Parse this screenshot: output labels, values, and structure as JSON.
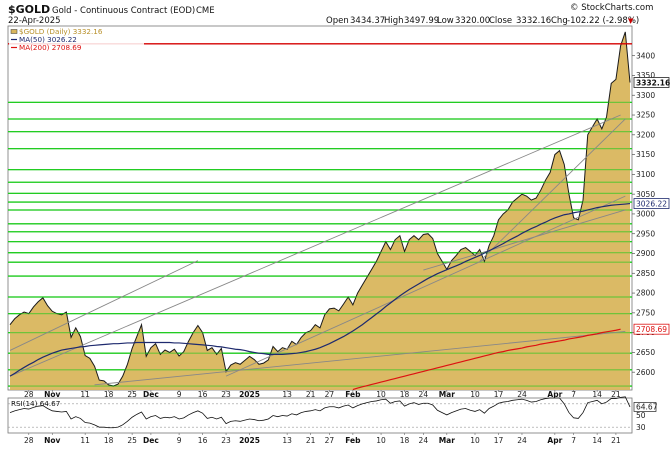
{
  "header": {
    "symbol": "$GOLD",
    "description": "Gold - Continuous Contract (EOD)",
    "exchange": "CME",
    "date": "22-Apr-2025",
    "watermark": "© StockCharts.com",
    "open_label": "Open",
    "open": "3434.37",
    "high_label": "High",
    "high": "3497.99",
    "low_label": "Low",
    "low": "3320.00",
    "close_label": "Close",
    "close": "3332.16",
    "chg_label": "Chg",
    "chg": "-102.22 (-2.98%)",
    "down_arrow": "▼"
  },
  "legend": {
    "price": "$GOLD (Daily) 3332.16",
    "ma50": "MA(50) 3026.22",
    "ma200": "MA(200) 2708.69"
  },
  "colors": {
    "price_fill": "#D9B65D",
    "price_line": "#1a1a1a",
    "ma50": "#1e2a6e",
    "ma200": "#dd1111",
    "hline": "#22cc22",
    "resistance": "#d40000",
    "trend": "#888888"
  },
  "rsi_label": "RSI(14) 64.67",
  "chart_data": {
    "type": "area",
    "title": "$GOLD Gold - Continuous Contract (EOD)",
    "ylim": [
      2555,
      3475
    ],
    "y_ticks": [
      2600,
      2650,
      2700,
      2750,
      2800,
      2850,
      2900,
      2950,
      3000,
      3050,
      3100,
      3150,
      3200,
      3250,
      3300,
      3350,
      3400
    ],
    "x_ticks": [
      {
        "label": "28",
        "i": 4,
        "bold": false
      },
      {
        "label": "Nov",
        "i": 9,
        "bold": true
      },
      {
        "label": "11",
        "i": 16,
        "bold": false
      },
      {
        "label": "18",
        "i": 21,
        "bold": false
      },
      {
        "label": "25",
        "i": 26,
        "bold": false
      },
      {
        "label": "Dec",
        "i": 30,
        "bold": true
      },
      {
        "label": "9",
        "i": 36,
        "bold": false
      },
      {
        "label": "16",
        "i": 41,
        "bold": false
      },
      {
        "label": "23",
        "i": 46,
        "bold": false
      },
      {
        "label": "2025",
        "i": 51,
        "bold": true
      },
      {
        "label": "13",
        "i": 59,
        "bold": false
      },
      {
        "label": "21",
        "i": 64,
        "bold": false
      },
      {
        "label": "27",
        "i": 68,
        "bold": false
      },
      {
        "label": "Feb",
        "i": 73,
        "bold": true
      },
      {
        "label": "10",
        "i": 79,
        "bold": false
      },
      {
        "label": "18",
        "i": 84,
        "bold": false
      },
      {
        "label": "24",
        "i": 88,
        "bold": false
      },
      {
        "label": "Mar",
        "i": 93,
        "bold": true
      },
      {
        "label": "10",
        "i": 99,
        "bold": false
      },
      {
        "label": "17",
        "i": 104,
        "bold": false
      },
      {
        "label": "24",
        "i": 109,
        "bold": false
      },
      {
        "label": "Apr",
        "i": 116,
        "bold": true
      },
      {
        "label": "7",
        "i": 120,
        "bold": false
      },
      {
        "label": "14",
        "i": 125,
        "bold": false
      },
      {
        "label": "21",
        "i": 129,
        "bold": false
      }
    ],
    "series": [
      {
        "name": "$GOLD (Daily)",
        "values": [
          2720,
          2735,
          2745,
          2752,
          2748,
          2765,
          2778,
          2788,
          2768,
          2754,
          2748,
          2745,
          2752,
          2688,
          2712,
          2690,
          2642,
          2635,
          2615,
          2580,
          2578,
          2568,
          2565,
          2570,
          2590,
          2620,
          2660,
          2690,
          2720,
          2640,
          2662,
          2672,
          2645,
          2656,
          2650,
          2658,
          2641,
          2652,
          2678,
          2700,
          2718,
          2700,
          2655,
          2662,
          2645,
          2660,
          2601,
          2618,
          2624,
          2620,
          2630,
          2640,
          2632,
          2620,
          2623,
          2631,
          2665,
          2652,
          2662,
          2658,
          2678,
          2670,
          2688,
          2700,
          2705,
          2720,
          2712,
          2745,
          2760,
          2762,
          2755,
          2772,
          2790,
          2770,
          2800,
          2820,
          2840,
          2860,
          2880,
          2905,
          2930,
          2910,
          2935,
          2945,
          2905,
          2935,
          2945,
          2935,
          2948,
          2950,
          2938,
          2900,
          2880,
          2860,
          2882,
          2895,
          2910,
          2915,
          2905,
          2895,
          2910,
          2880,
          2920,
          2945,
          2985,
          3000,
          3010,
          3030,
          3040,
          3050,
          3045,
          3035,
          3040,
          3060,
          3085,
          3105,
          3150,
          3160,
          3125,
          3050,
          2990,
          2985,
          3035,
          3200,
          3220,
          3240,
          3215,
          3245,
          3330,
          3340,
          3425,
          3460,
          3332.16
        ]
      },
      {
        "name": "MA(50)",
        "values": [
          2590,
          2597,
          2605,
          2612,
          2619,
          2625,
          2632,
          2638,
          2643,
          2648,
          2652,
          2656,
          2658,
          2660,
          2662,
          2664,
          2665,
          2667,
          2668,
          2669,
          2670,
          2671,
          2672,
          2672,
          2673,
          2674,
          2674,
          2675,
          2675,
          2675,
          2675,
          2675,
          2675,
          2675,
          2675,
          2674,
          2674,
          2673,
          2672,
          2671,
          2670,
          2669,
          2668,
          2667,
          2665,
          2664,
          2662,
          2660,
          2658,
          2657,
          2655,
          2652,
          2650,
          2648,
          2647,
          2645,
          2645,
          2645,
          2645,
          2646,
          2647,
          2648,
          2650,
          2652,
          2655,
          2658,
          2662,
          2667,
          2672,
          2678,
          2684,
          2690,
          2697,
          2704,
          2712,
          2720,
          2729,
          2738,
          2747,
          2756,
          2766,
          2775,
          2784,
          2793,
          2801,
          2809,
          2816,
          2823,
          2830,
          2837,
          2843,
          2849,
          2854,
          2859,
          2864,
          2869,
          2874,
          2880,
          2885,
          2890,
          2895,
          2901,
          2907,
          2913,
          2919,
          2925,
          2932,
          2938,
          2944,
          2951,
          2957,
          2963,
          2968,
          2974,
          2979,
          2985,
          2990,
          2994,
          2998,
          3000,
          3003,
          3005,
          3007,
          3010,
          3013,
          3016,
          3018,
          3020,
          3022,
          3023,
          3024,
          3025,
          3026.22
        ]
      },
      {
        "name": "MA(200)",
        "values": [
          null,
          null,
          null,
          null,
          null,
          null,
          null,
          null,
          null,
          null,
          null,
          null,
          null,
          null,
          null,
          null,
          null,
          null,
          null,
          null,
          null,
          null,
          null,
          null,
          null,
          null,
          null,
          null,
          null,
          null,
          null,
          null,
          null,
          null,
          null,
          null,
          null,
          null,
          null,
          null,
          null,
          null,
          null,
          null,
          null,
          null,
          null,
          null,
          null,
          null,
          null,
          null,
          null,
          null,
          null,
          null,
          null,
          null,
          null,
          null,
          null,
          null,
          null,
          null,
          null,
          null,
          null,
          null,
          null,
          null,
          null,
          null,
          null,
          2556,
          2560,
          2563,
          2566,
          2569,
          2572,
          2575,
          2578,
          2581,
          2584,
          2587,
          2590,
          2593,
          2596,
          2599,
          2602,
          2605,
          2608,
          2611,
          2614,
          2617,
          2620,
          2623,
          2626,
          2629,
          2632,
          2635,
          2638,
          2641,
          2644,
          2647,
          2650,
          2652,
          2655,
          2657,
          2659,
          2661,
          2664,
          2666,
          2668,
          2671,
          2673,
          2675,
          2677,
          2679,
          2681,
          2684,
          2686,
          2688,
          2690,
          2693,
          2695,
          2697,
          2700,
          2702,
          2704,
          2706,
          2708.69
        ]
      }
    ],
    "horizontal_levels": [
      2565,
      2606,
      2648,
      2700,
      2748,
      2790,
      2843,
      2878,
      2902,
      2930,
      2955,
      2975,
      3010,
      3030,
      3052,
      3080,
      3112,
      3165,
      3208,
      3240,
      3282
    ],
    "resistance_level": 3430,
    "trend_lines": [
      {
        "from": [
          0,
          2655
        ],
        "to": [
          40,
          2882
        ]
      },
      {
        "from": [
          0,
          2590
        ],
        "to": [
          130,
          3250
        ]
      },
      {
        "from": [
          18,
          2568
        ],
        "to": [
          131,
          2703
        ]
      },
      {
        "from": [
          46,
          2590
        ],
        "to": [
          131,
          3045
        ]
      },
      {
        "from": [
          88,
          2858
        ],
        "to": [
          131,
          3010
        ]
      },
      {
        "from": [
          100,
          2880
        ],
        "to": [
          131,
          3240
        ]
      }
    ],
    "price_labels": [
      {
        "text": "3332.16",
        "value": 3332.16,
        "style": "dark"
      },
      {
        "text": "3026.22",
        "value": 3026.22,
        "style": "navy"
      },
      {
        "text": "2708.69",
        "value": 2708.69,
        "style": "red"
      }
    ],
    "rsi": {
      "name": "RSI(14)",
      "ylim": [
        20,
        80
      ],
      "y_ticks": [
        50,
        30
      ],
      "current_label": "64.67",
      "values": [
        55,
        58,
        60,
        62,
        61,
        64,
        66,
        67,
        62,
        58,
        57,
        56,
        57,
        44,
        48,
        45,
        38,
        37,
        34,
        30,
        30,
        29,
        29,
        30,
        34,
        40,
        47,
        52,
        56,
        44,
        48,
        50,
        45,
        47,
        46,
        48,
        44,
        46,
        51,
        55,
        58,
        54,
        45,
        47,
        44,
        47,
        36,
        40,
        41,
        40,
        42,
        44,
        43,
        41,
        42,
        44,
        50,
        48,
        50,
        49,
        53,
        51,
        55,
        57,
        58,
        60,
        58,
        63,
        65,
        65,
        63,
        66,
        68,
        63,
        67,
        70,
        72,
        74,
        75,
        77,
        78,
        71,
        74,
        75,
        66,
        70,
        72,
        69,
        71,
        71,
        68,
        59,
        55,
        51,
        55,
        58,
        61,
        62,
        59,
        57,
        60,
        54,
        62,
        66,
        71,
        73,
        74,
        76,
        77,
        78,
        76,
        73,
        74,
        77,
        79,
        80,
        80,
        80,
        70,
        55,
        46,
        45,
        55,
        72,
        74,
        76,
        70,
        73,
        79,
        79,
        81,
        82,
        64.67
      ]
    }
  }
}
